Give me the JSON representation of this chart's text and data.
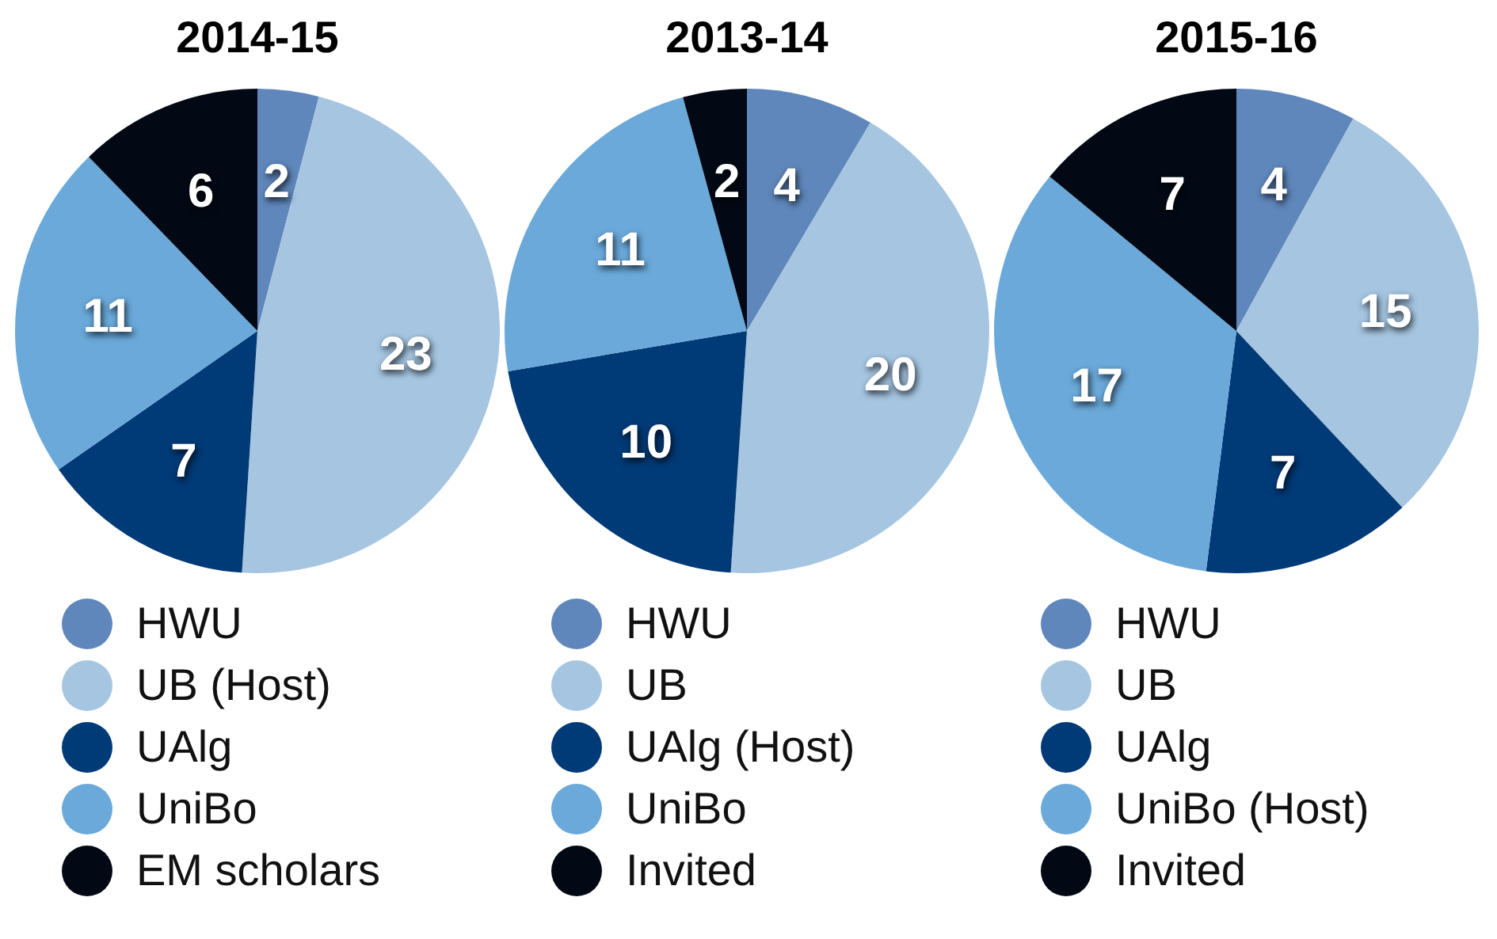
{
  "chart_data": [
    {
      "type": "pie",
      "title": "2014-15",
      "categories": [
        "HWU",
        "UB (Host)",
        "UAlg",
        "UniBo",
        "EM scholars"
      ],
      "values": [
        2,
        23,
        7,
        11,
        6
      ],
      "colors": [
        "#5f87bb",
        "#a5c5e1",
        "#003a77",
        "#6aa9da",
        "#020915"
      ],
      "data_labels": true,
      "legend": "bottom"
    },
    {
      "type": "pie",
      "title": "2013-14",
      "categories": [
        "HWU",
        "UB",
        "UAlg (Host)",
        "UniBo",
        "Invited"
      ],
      "values": [
        4,
        20,
        10,
        11,
        2
      ],
      "colors": [
        "#5f87bb",
        "#a5c5e1",
        "#003a77",
        "#6aa9da",
        "#020915"
      ],
      "data_labels": true,
      "legend": "bottom"
    },
    {
      "type": "pie",
      "title": "2015-16",
      "categories": [
        "HWU",
        "UB",
        "UAlg",
        "UniBo (Host)",
        "Invited"
      ],
      "values": [
        4,
        15,
        7,
        17,
        7
      ],
      "colors": [
        "#5f87bb",
        "#a5c5e1",
        "#003a77",
        "#6aa9da",
        "#020915"
      ],
      "data_labels": true,
      "legend": "bottom"
    }
  ]
}
